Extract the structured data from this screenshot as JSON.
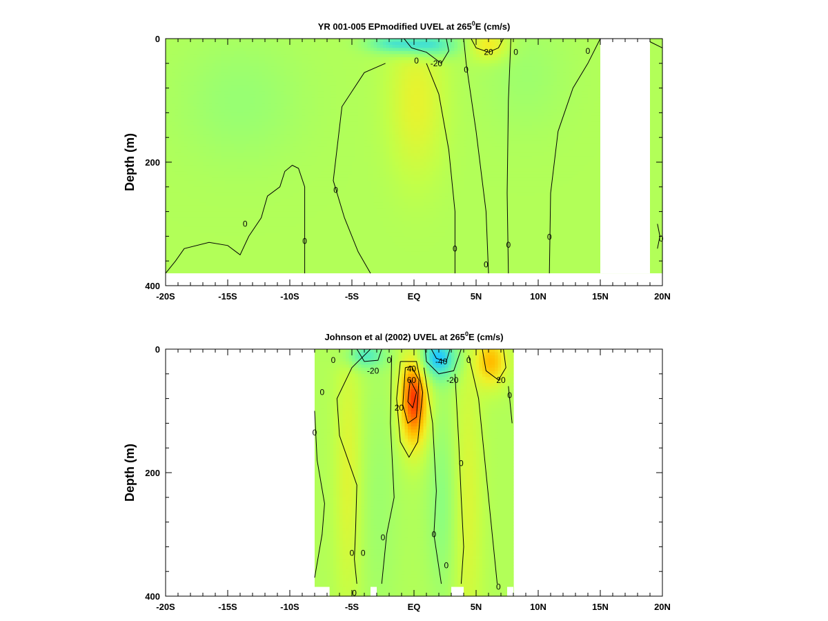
{
  "figure": {
    "background": "#ffffff",
    "colormap": [
      "#1f6bff",
      "#1fc8ff",
      "#5bf0b4",
      "#8dff7d",
      "#c2ff48",
      "#f0f028",
      "#ffc000",
      "#ff7a00",
      "#ff2a00"
    ],
    "colormap_range": [
      -60,
      70
    ]
  },
  "chart_data": [
    {
      "type": "heatmap",
      "title_pre": "YR 001-005 EPmodified UVEL at 265",
      "title_sup": "0",
      "title_post": "E (cm/s)",
      "ylabel": "Depth (m)",
      "xlabel": "",
      "x_tick_labels": [
        "-20S",
        "-15S",
        "-10S",
        "-5S",
        "EQ",
        "5N",
        "10N",
        "15N",
        "20N"
      ],
      "x_tick_values": [
        -20,
        -15,
        -10,
        -5,
        0,
        5,
        10,
        15,
        20
      ],
      "y_tick_labels": [
        "0",
        "200",
        "400"
      ],
      "y_tick_values": [
        0,
        200,
        400
      ],
      "xlim": [
        -20,
        20
      ],
      "ylim": [
        400,
        0
      ],
      "value_units": "cm/s",
      "data_extent": {
        "lat": [
          -20,
          20
        ],
        "depth": [
          0,
          380
        ]
      },
      "missing_data_regions": [
        {
          "lat": [
            14.5,
            20
          ],
          "depth": [
            380,
            400
          ]
        },
        {
          "lat": [
            -20,
            14.5
          ],
          "depth": [
            380,
            400
          ]
        },
        {
          "lat": [
            15,
            19
          ],
          "depth": [
            0,
            380
          ]
        }
      ],
      "features": [
        {
          "name": "surface westward jet",
          "lat": 1.0,
          "depth": 10,
          "value": -40,
          "lat_width": 2.5,
          "depth_width": 20
        },
        {
          "name": "surface westward current",
          "lat": -2.0,
          "depth": 8,
          "value": -25,
          "lat_width": 2.0,
          "depth_width": 15
        },
        {
          "name": "equatorial undercurrent",
          "lat": 0.2,
          "depth": 100,
          "value": 18,
          "lat_width": 2.2,
          "depth_width": 120
        },
        {
          "name": "north equatorial countercurrent",
          "lat": 6.0,
          "depth": 10,
          "value": 25,
          "lat_width": 1.6,
          "depth_width": 25
        },
        {
          "name": "southern westward flow",
          "lat": -14.0,
          "depth": 100,
          "value": -8,
          "lat_width": 5.0,
          "depth_width": 100
        },
        {
          "name": "offshore westward flow",
          "lat": 9.0,
          "depth": 60,
          "value": -6,
          "lat_width": 3.5,
          "depth_width": 90
        }
      ],
      "contour_labels": [
        {
          "text": "-20",
          "lat": 1.8,
          "depth": 40
        },
        {
          "text": "20",
          "lat": 6.0,
          "depth": 22
        },
        {
          "text": "0",
          "lat": 0.2,
          "depth": 36
        },
        {
          "text": "0",
          "lat": 4.2,
          "depth": 50
        },
        {
          "text": "0",
          "lat": 8.2,
          "depth": 22
        },
        {
          "text": "0",
          "lat": 14.0,
          "depth": 20
        },
        {
          "text": "0",
          "lat": -6.3,
          "depth": 245
        },
        {
          "text": "0",
          "lat": -13.6,
          "depth": 300
        },
        {
          "text": "0",
          "lat": -8.8,
          "depth": 328
        },
        {
          "text": "0",
          "lat": 3.3,
          "depth": 340
        },
        {
          "text": "0",
          "lat": 5.8,
          "depth": 366
        },
        {
          "text": "0",
          "lat": 7.6,
          "depth": 334
        },
        {
          "text": "0",
          "lat": 10.9,
          "depth": 321
        },
        {
          "text": "0",
          "lat": 19.9,
          "depth": 324
        }
      ],
      "zero_contours": [
        [
          [
            -20,
            380
          ],
          [
            -19.2,
            360
          ],
          [
            -18.5,
            340
          ],
          [
            -16.5,
            330
          ],
          [
            -15,
            335
          ],
          [
            -14,
            350
          ],
          [
            -13.3,
            320
          ],
          [
            -12.3,
            290
          ],
          [
            -11.8,
            255
          ],
          [
            -10.8,
            240
          ],
          [
            -10.4,
            215
          ],
          [
            -9.8,
            205
          ],
          [
            -9.3,
            210
          ],
          [
            -8.8,
            240
          ],
          [
            -8.8,
            380
          ]
        ],
        [
          [
            -2.3,
            40
          ],
          [
            -4,
            55
          ],
          [
            -5.8,
            110
          ],
          [
            -6.5,
            230
          ],
          [
            -5.6,
            290
          ],
          [
            -4.5,
            345
          ],
          [
            -3.5,
            380
          ]
        ],
        [
          [
            1.0,
            40
          ],
          [
            2.0,
            90
          ],
          [
            2.8,
            180
          ],
          [
            3.3,
            280
          ],
          [
            3.3,
            380
          ]
        ],
        [
          [
            4.0,
            0
          ],
          [
            4.2,
            40
          ],
          [
            5.0,
            150
          ],
          [
            5.8,
            280
          ],
          [
            6.0,
            380
          ]
        ],
        [
          [
            7.8,
            0
          ],
          [
            7.6,
            100
          ],
          [
            7.5,
            250
          ],
          [
            7.6,
            380
          ]
        ],
        [
          [
            15.0,
            0
          ],
          [
            14.0,
            40
          ],
          [
            12.8,
            80
          ],
          [
            11.6,
            150
          ],
          [
            11.0,
            250
          ],
          [
            10.9,
            380
          ]
        ],
        [
          [
            19.0,
            5
          ],
          [
            20,
            15
          ]
        ],
        [
          [
            19.6,
            300
          ],
          [
            19.8,
            320
          ],
          [
            19.6,
            340
          ]
        ]
      ],
      "contour_lines": [
        {
          "value": -20,
          "points": [
            [
              -0.8,
              0
            ],
            [
              -0.2,
              15
            ],
            [
              1.0,
              22
            ],
            [
              2.2,
              40
            ],
            [
              2.8,
              20
            ],
            [
              2.6,
              0
            ]
          ]
        },
        {
          "value": 20,
          "points": [
            [
              4.6,
              0
            ],
            [
              5.0,
              15
            ],
            [
              6.0,
              22
            ],
            [
              6.8,
              15
            ],
            [
              7.2,
              0
            ]
          ]
        }
      ]
    },
    {
      "type": "heatmap",
      "title_pre": "Johnson et al (2002) UVEL at 265",
      "title_sup": "0",
      "title_post": "E (cm/s)",
      "ylabel": "Depth (m)",
      "xlabel": "",
      "x_tick_labels": [
        "-20S",
        "-15S",
        "-10S",
        "-5S",
        "EQ",
        "5N",
        "10N",
        "15N",
        "20N"
      ],
      "x_tick_values": [
        -20,
        -15,
        -10,
        -5,
        0,
        5,
        10,
        15,
        20
      ],
      "y_tick_labels": [
        "0",
        "200",
        "400"
      ],
      "y_tick_values": [
        0,
        200,
        400
      ],
      "xlim": [
        -20,
        20
      ],
      "ylim": [
        400,
        0
      ],
      "value_units": "cm/s",
      "data_extent": {
        "lat": [
          -8,
          8
        ],
        "depth": [
          0,
          400
        ]
      },
      "missing_data_regions": [
        {
          "lat": [
            -8,
            -6.8
          ],
          "depth": [
            385,
            400
          ]
        },
        {
          "lat": [
            -3.5,
            -3
          ],
          "depth": [
            385,
            400
          ]
        },
        {
          "lat": [
            3,
            4
          ],
          "depth": [
            385,
            400
          ]
        },
        {
          "lat": [
            7.5,
            8
          ],
          "depth": [
            385,
            400
          ]
        }
      ],
      "features": [
        {
          "name": "equatorial undercurrent core",
          "lat": 0.0,
          "depth": 80,
          "value": 68,
          "lat_width": 1.1,
          "depth_width": 75
        },
        {
          "name": "surface westward jet",
          "lat": 1.8,
          "depth": 15,
          "value": -45,
          "lat_width": 1.8,
          "depth_width": 35
        },
        {
          "name": "south surface westward current",
          "lat": -4.0,
          "depth": 10,
          "value": -30,
          "lat_width": 1.6,
          "depth_width": 22
        },
        {
          "name": "north equatorial countercurrent",
          "lat": 6.2,
          "depth": 20,
          "value": 38,
          "lat_width": 1.3,
          "depth_width": 40
        },
        {
          "name": "southern subsurface countercurrent",
          "lat": -5.3,
          "depth": 200,
          "value": 15,
          "lat_width": 1.1,
          "depth_width": 220
        },
        {
          "name": "northern subsurface countercurrent",
          "lat": 4.3,
          "depth": 250,
          "value": 14,
          "lat_width": 1.2,
          "depth_width": 250
        },
        {
          "name": "deep westward flow",
          "lat": 2.3,
          "depth": 250,
          "value": -12,
          "lat_width": 1.2,
          "depth_width": 150
        },
        {
          "name": "southern deep westward flow",
          "lat": -2.8,
          "depth": 250,
          "value": -6,
          "lat_width": 1.5,
          "depth_width": 200
        }
      ],
      "contour_labels": [
        {
          "text": "-20",
          "lat": -3.3,
          "depth": 35
        },
        {
          "text": "-40",
          "lat": 2.2,
          "depth": 20
        },
        {
          "text": "-20",
          "lat": 3.1,
          "depth": 50
        },
        {
          "text": "40",
          "lat": -0.2,
          "depth": 32
        },
        {
          "text": "60",
          "lat": -0.2,
          "depth": 50
        },
        {
          "text": "20",
          "lat": -1.2,
          "depth": 95
        },
        {
          "text": "20",
          "lat": 7.0,
          "depth": 50
        },
        {
          "text": "0",
          "lat": -6.5,
          "depth": 18
        },
        {
          "text": "0",
          "lat": -7.4,
          "depth": 70
        },
        {
          "text": "0",
          "lat": -8.0,
          "depth": 135
        },
        {
          "text": "0",
          "lat": -2.0,
          "depth": 18
        },
        {
          "text": "0",
          "lat": 4.4,
          "depth": 18
        },
        {
          "text": "0",
          "lat": 7.7,
          "depth": 75
        },
        {
          "text": "0",
          "lat": 3.8,
          "depth": 185
        },
        {
          "text": "0",
          "lat": 1.6,
          "depth": 300
        },
        {
          "text": "0",
          "lat": -2.5,
          "depth": 305
        },
        {
          "text": "0",
          "lat": -5.0,
          "depth": 330
        },
        {
          "text": "0",
          "lat": -4.1,
          "depth": 330
        },
        {
          "text": "0",
          "lat": 2.6,
          "depth": 350
        },
        {
          "text": "0",
          "lat": 6.8,
          "depth": 385
        },
        {
          "text": "0",
          "lat": -4.8,
          "depth": 395
        }
      ],
      "zero_contours": [
        [
          [
            -8,
            100
          ],
          [
            -7.8,
            180
          ],
          [
            -7.2,
            250
          ],
          [
            -7.4,
            300
          ],
          [
            -8,
            370
          ]
        ],
        [
          [
            -3.5,
            0
          ],
          [
            -5,
            30
          ],
          [
            -6.2,
            80
          ],
          [
            -6.0,
            140
          ],
          [
            -4.6,
            220
          ],
          [
            -4.7,
            290
          ],
          [
            -4.8,
            340
          ],
          [
            -4.6,
            380
          ]
        ],
        [
          [
            -1.8,
            10
          ],
          [
            -1.9,
            120
          ],
          [
            -1.6,
            240
          ],
          [
            -2.2,
            300
          ],
          [
            -2.6,
            380
          ]
        ],
        [
          [
            0.8,
            30
          ],
          [
            1.5,
            120
          ],
          [
            1.8,
            230
          ],
          [
            1.6,
            300
          ],
          [
            2.2,
            380
          ]
        ],
        [
          [
            3.3,
            40
          ],
          [
            3.6,
            150
          ],
          [
            3.8,
            240
          ],
          [
            4.0,
            320
          ],
          [
            3.8,
            380
          ]
        ],
        [
          [
            4.4,
            10
          ],
          [
            5.2,
            80
          ],
          [
            5.8,
            200
          ],
          [
            6.3,
            300
          ],
          [
            6.7,
            380
          ]
        ],
        [
          [
            7.6,
            60
          ],
          [
            7.9,
            120
          ]
        ]
      ],
      "contour_lines": [
        {
          "value": 20,
          "points": [
            [
              -1.1,
              20
            ],
            [
              -1.4,
              80
            ],
            [
              -1.1,
              150
            ],
            [
              -0.4,
              175
            ],
            [
              0.3,
              150
            ],
            [
              0.7,
              70
            ],
            [
              0.2,
              20
            ],
            [
              -1.1,
              20
            ]
          ]
        },
        {
          "value": 40,
          "points": [
            [
              -0.7,
              30
            ],
            [
              -0.9,
              90
            ],
            [
              -0.5,
              120
            ],
            [
              0.2,
              110
            ],
            [
              0.4,
              50
            ],
            [
              -0.2,
              28
            ],
            [
              -0.7,
              30
            ]
          ]
        },
        {
          "value": 60,
          "points": [
            [
              -0.3,
              50
            ],
            [
              -0.5,
              85
            ],
            [
              -0.1,
              95
            ],
            [
              0.2,
              70
            ],
            [
              -0.3,
              50
            ]
          ]
        },
        {
          "value": -20,
          "points": [
            [
              0.9,
              0
            ],
            [
              1.0,
              20
            ],
            [
              2.0,
              40
            ],
            [
              3.2,
              35
            ],
            [
              3.8,
              0
            ]
          ]
        },
        {
          "value": -40,
          "points": [
            [
              1.4,
              0
            ],
            [
              1.8,
              15
            ],
            [
              2.6,
              20
            ],
            [
              2.9,
              0
            ]
          ]
        },
        {
          "value": -20,
          "points": [
            [
              -4.6,
              0
            ],
            [
              -4.0,
              20
            ],
            [
              -2.9,
              18
            ],
            [
              -2.6,
              0
            ]
          ]
        },
        {
          "value": 20,
          "points": [
            [
              5.5,
              0
            ],
            [
              5.8,
              35
            ],
            [
              6.8,
              50
            ],
            [
              7.4,
              30
            ],
            [
              7.2,
              0
            ]
          ]
        }
      ]
    }
  ]
}
